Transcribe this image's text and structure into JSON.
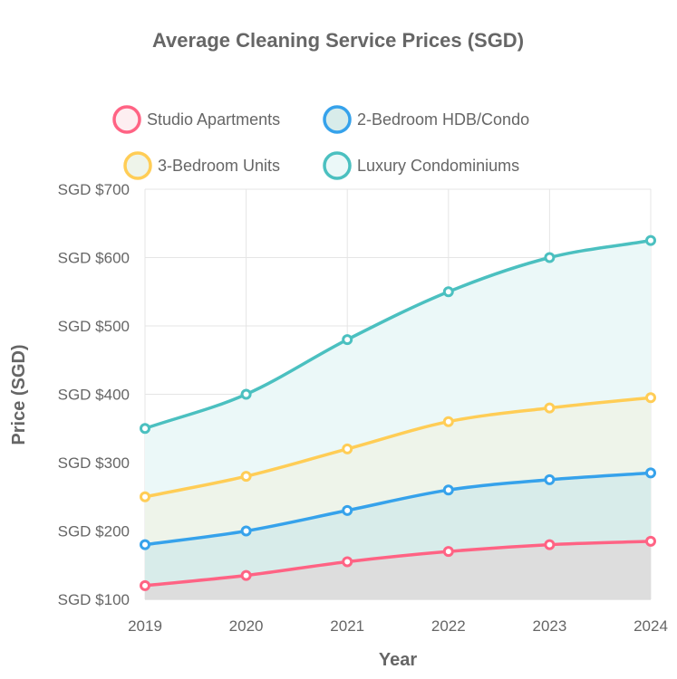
{
  "chart_data": {
    "type": "area",
    "title": "Average Cleaning Service Prices (SGD)",
    "xlabel": "Year",
    "ylabel": "Price (SGD)",
    "categories": [
      "2019",
      "2020",
      "2021",
      "2022",
      "2023",
      "2024"
    ],
    "ylim": [
      100,
      700
    ],
    "y_step": 100,
    "y_tick_labels": [
      "SGD $100",
      "SGD $200",
      "SGD $300",
      "SGD $400",
      "SGD $500",
      "SGD $600",
      "SGD $700"
    ],
    "grid": true,
    "legend_position": "top",
    "series": [
      {
        "name": "Studio Apartments",
        "values": [
          120,
          135,
          155,
          170,
          180,
          185
        ],
        "color": "#ff6384",
        "fill": "#dddddd"
      },
      {
        "name": "2-Bedroom HDB/Condo",
        "values": [
          180,
          200,
          230,
          260,
          275,
          285
        ],
        "color": "#36a2eb",
        "fill": "#d8ecea"
      },
      {
        "name": "3-Bedroom Units",
        "values": [
          250,
          280,
          320,
          360,
          380,
          395
        ],
        "color": "#ffcd56",
        "fill": "#eef4ea"
      },
      {
        "name": "Luxury Condominiums",
        "values": [
          350,
          400,
          480,
          550,
          600,
          625
        ],
        "color": "#4bc0c0",
        "fill": "#ebf8f8"
      }
    ]
  }
}
